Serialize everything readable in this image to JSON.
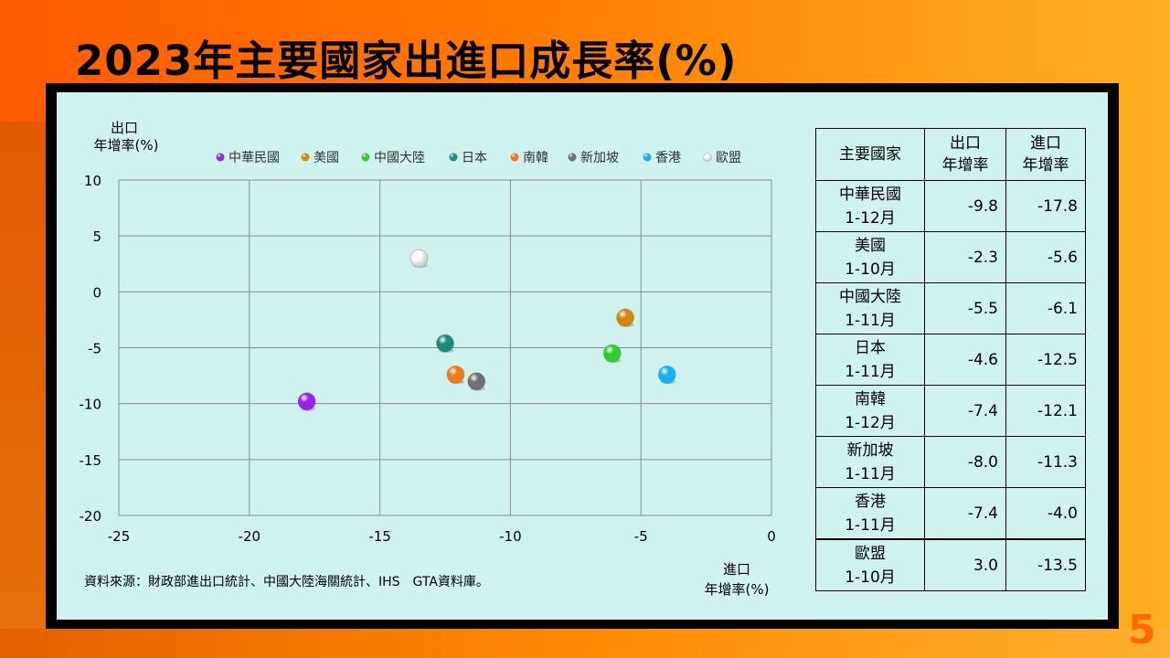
{
  "title": "2023年主要國家出進口成長率(%)",
  "page_number": "5",
  "source_note": "資料來源：財政部進出口統計、中國大陸海關統計、IHS　GTA資料庫。",
  "colors": {
    "panel_bg": "#cff2ef",
    "frame": "#000000",
    "page_number": "#ff6a00"
  },
  "chart_data": {
    "type": "scatter",
    "ylabel_line1": "出口",
    "ylabel_line2": "年增率(%)",
    "xlabel_line1": "進口",
    "xlabel_line2": "年增率(%)",
    "xlim": [
      -25,
      0
    ],
    "ylim": [
      -20,
      10
    ],
    "x_ticks": [
      -25,
      -20,
      -15,
      -10,
      -5,
      0
    ],
    "y_ticks": [
      10,
      5,
      0,
      -5,
      -10,
      -15,
      -20
    ],
    "grid": true,
    "legend_position": "top",
    "series": [
      {
        "name": "中華民國",
        "x": -17.8,
        "y": -9.8,
        "color": "#a020f0"
      },
      {
        "name": "美國",
        "x": -5.6,
        "y": -2.3,
        "color": "#d4880a"
      },
      {
        "name": "中國大陸",
        "x": -6.1,
        "y": -5.5,
        "color": "#2ecc2e"
      },
      {
        "name": "日本",
        "x": -12.5,
        "y": -4.6,
        "color": "#1f8a80"
      },
      {
        "name": "南韓",
        "x": -12.1,
        "y": -7.4,
        "color": "#f07a1a"
      },
      {
        "name": "新加坡",
        "x": -11.3,
        "y": -8.0,
        "color": "#707070"
      },
      {
        "name": "香港",
        "x": -4.0,
        "y": -7.4,
        "color": "#1ab0f0"
      },
      {
        "name": "歐盟",
        "x": -13.5,
        "y": 3.0,
        "color": "#ffffff"
      }
    ]
  },
  "table": {
    "headers": [
      {
        "line1": "主要國家",
        "line2": ""
      },
      {
        "line1": "出口",
        "line2": "年增率"
      },
      {
        "line1": "進口",
        "line2": "年增率"
      }
    ],
    "rows": [
      {
        "country": "中華民國",
        "period": "1-12月",
        "export": "-9.8",
        "import": "-17.8"
      },
      {
        "country": "美國",
        "period": "1-10月",
        "export": "-2.3",
        "import": "-5.6"
      },
      {
        "country": "中國大陸",
        "period": "1-11月",
        "export": "-5.5",
        "import": "-6.1"
      },
      {
        "country": "日本",
        "period": "1-11月",
        "export": "-4.6",
        "import": "-12.5"
      },
      {
        "country": "南韓",
        "period": "1-12月",
        "export": "-7.4",
        "import": "-12.1"
      },
      {
        "country": "新加坡",
        "period": "1-11月",
        "export": "-8.0",
        "import": "-11.3"
      },
      {
        "country": "香港",
        "period": "1-11月",
        "export": "-7.4",
        "import": "-4.0"
      },
      {
        "country": "歐盟",
        "period": "1-10月",
        "export": "3.0",
        "import": "-13.5"
      }
    ]
  }
}
